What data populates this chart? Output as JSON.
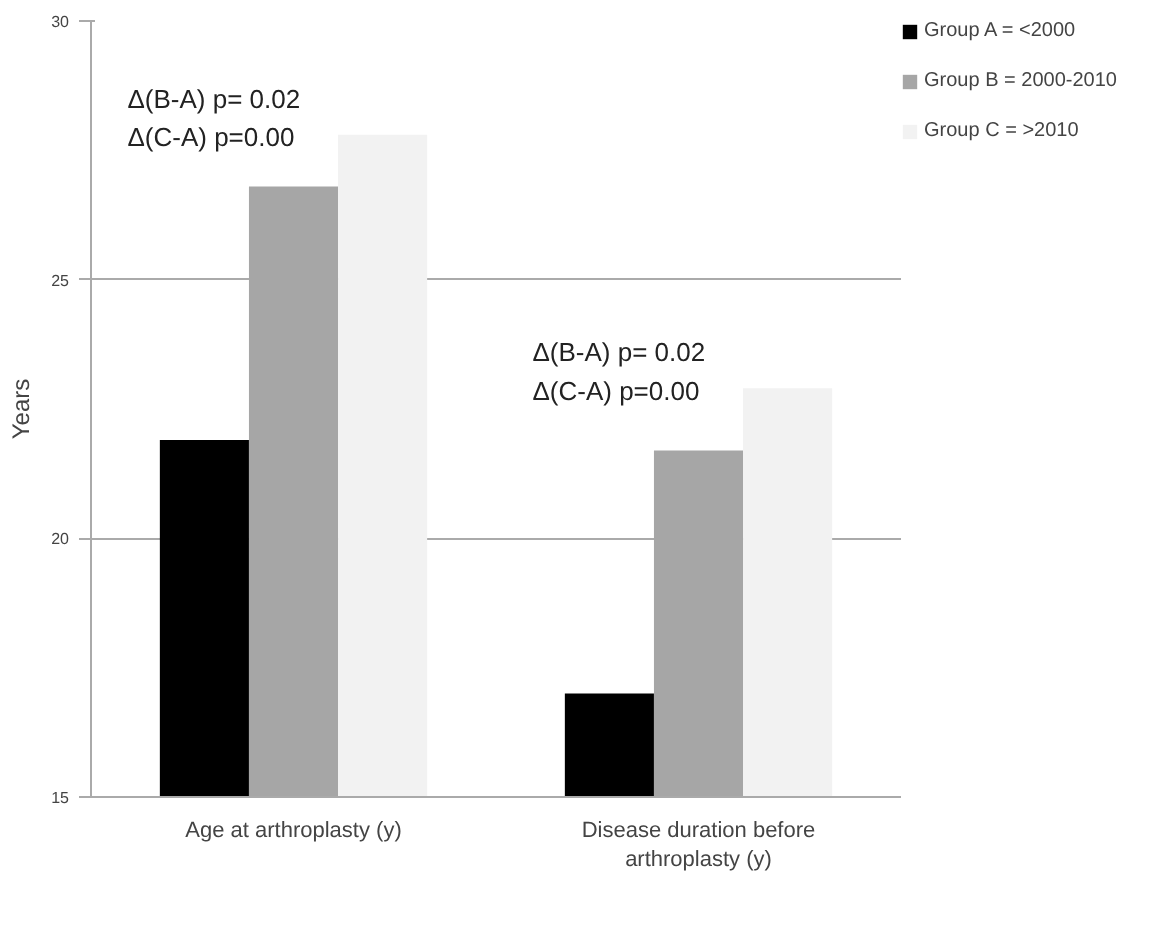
{
  "chart_data": {
    "type": "bar",
    "ylabel": "Years",
    "categories": [
      "Age at arthroplasty (y)",
      "Disease duration before arthroplasty (y)"
    ],
    "series": [
      {
        "name": "Group A = <2000",
        "color": "#000000",
        "values": [
          21.9,
          17.0
        ]
      },
      {
        "name": "Group B = 2000-2010",
        "color": "#a6a6a6",
        "values": [
          26.8,
          21.7
        ]
      },
      {
        "name": "Group C = >2010",
        "color": "#f2f2f2",
        "values": [
          27.8,
          22.9
        ]
      }
    ],
    "ylim": [
      15,
      30
    ],
    "yticks": [
      15,
      20,
      25,
      30
    ],
    "grid": "y",
    "legend": "right",
    "annotations": [
      "Δ(B-A)  p= 0.02",
      "Δ(C-A)  p=0.00",
      "Δ(B-A) p= 0.02",
      "Δ(C-A)  p=0.00"
    ]
  }
}
